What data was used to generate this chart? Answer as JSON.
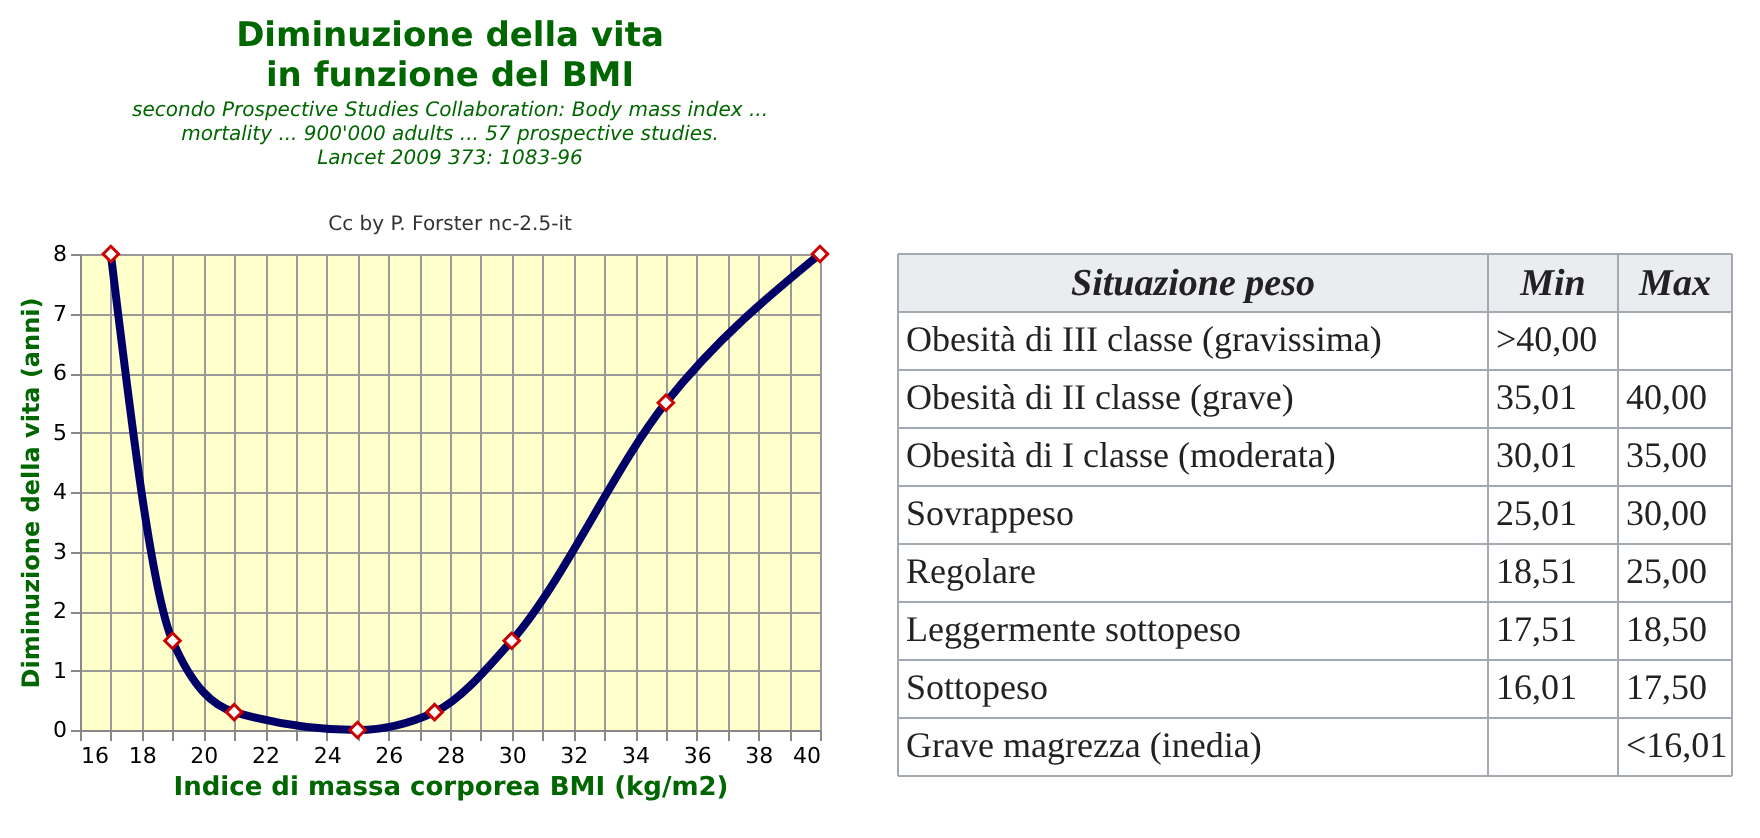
{
  "chart_data": [
    {
      "type": "line",
      "title": "Diminuzione della vita\nin funzione del BMI",
      "subtitle": "secondo Prospective Studies Collaboration: Body mass index ...\nmortality ... 900'000 adults ... 57 prospective studies.\nLancet 2009 373: 1083-96",
      "annotations": [
        "Cc by P. Forster nc-2.5-it"
      ],
      "xlabel": "Indice di massa corporea BMI (kg/m2)",
      "ylabel": "Diminuzione della vita (anni)",
      "x": [
        17,
        19,
        21,
        25,
        27.5,
        30,
        35,
        40
      ],
      "series": [
        {
          "color": "#000066",
          "values": [
            8,
            1.5,
            0.3,
            0,
            0.3,
            1.5,
            5.5,
            8
          ]
        }
      ],
      "marker": "diamond",
      "grid": true,
      "xlim": [
        16,
        40
      ],
      "ylim": [
        0,
        8
      ],
      "xticks": [
        16,
        {
          "value": 17,
          "label": null
        },
        18,
        {
          "value": 19,
          "label": null
        },
        20,
        {
          "value": 21,
          "label": null
        },
        22,
        {
          "value": 23,
          "label": null
        },
        24,
        {
          "value": 25,
          "label": null
        },
        26,
        {
          "value": 27,
          "label": null
        },
        28,
        {
          "value": 29,
          "label": null
        },
        30,
        {
          "value": 31,
          "label": null
        },
        32,
        {
          "value": 33,
          "label": null
        },
        34,
        {
          "value": 35,
          "label": null
        },
        36,
        {
          "value": 37,
          "label": null
        },
        38,
        {
          "value": 39,
          "label": null
        },
        40
      ],
      "yticks": [
        0,
        1,
        2,
        3,
        4,
        5,
        6,
        7,
        8
      ]
    },
    {
      "type": "other",
      "categories": [
        "Situazione peso",
        "Min",
        "Max"
      ],
      "y_categories": [
        "Obesità di III classe (gravissima)",
        "Obesità di II classe (grave)",
        "Obesità di I classe (moderata)",
        "Sovrappeso",
        "Regolare",
        "Leggermente sottopeso",
        "Sottopeso",
        "Grave magrezza (inedia)"
      ],
      "cell_labels": [
        [
          ">40,00",
          null
        ],
        [
          "35,01",
          "40,00"
        ],
        [
          "30,01",
          "35,00"
        ],
        [
          "25,01",
          "30,00"
        ],
        [
          "18,51",
          "25,00"
        ],
        [
          "17,51",
          "18,50"
        ],
        [
          "16,01",
          "17,50"
        ],
        [
          null,
          "<16,01"
        ]
      ]
    }
  ]
}
